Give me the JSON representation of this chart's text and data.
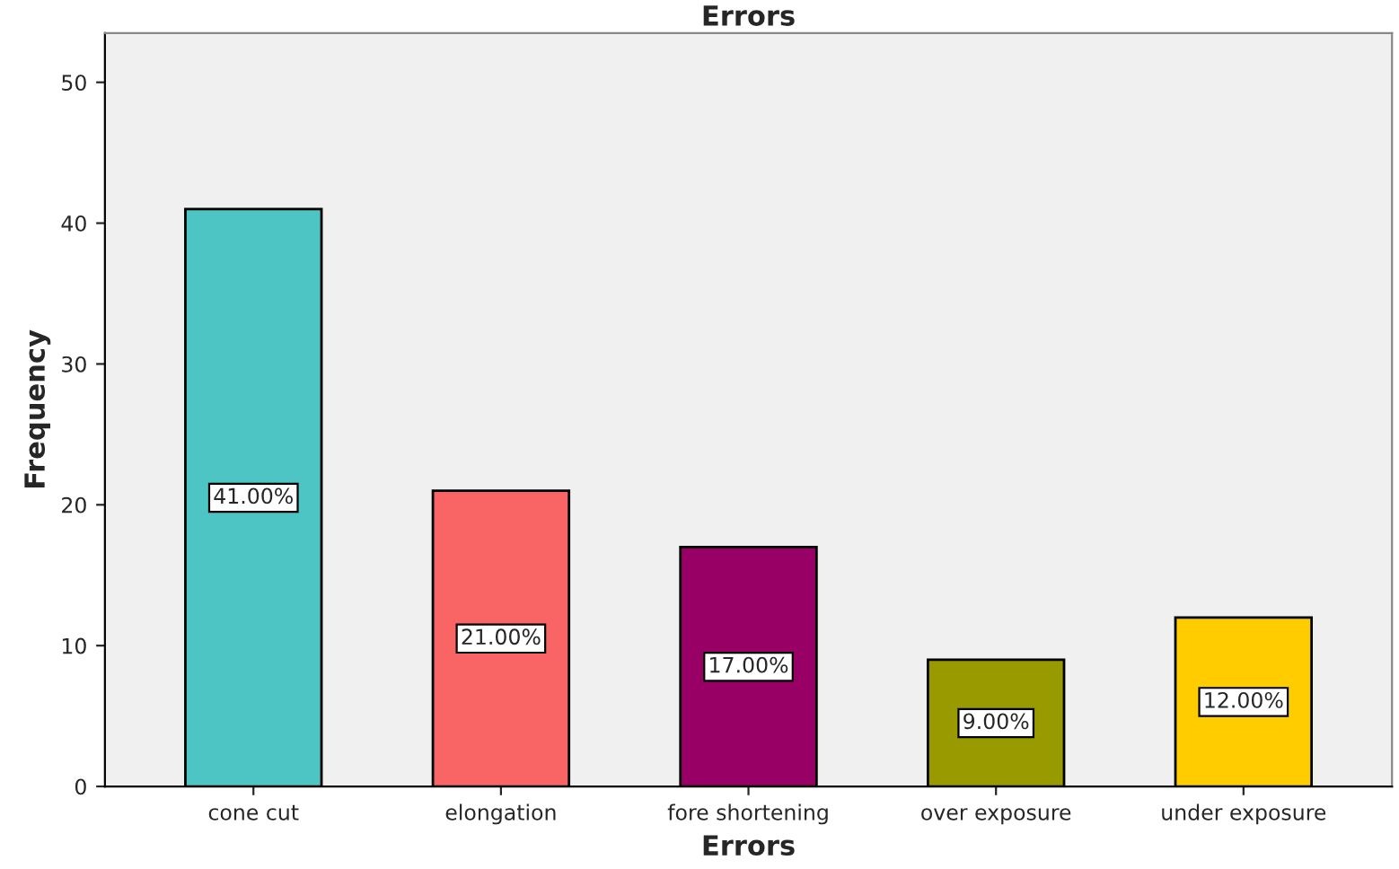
{
  "chart_data": {
    "type": "bar",
    "title": "Errors",
    "xlabel": "Errors",
    "ylabel": "Frequency",
    "categories": [
      "cone cut",
      "elongation",
      "fore shortening",
      "over exposure",
      "under exposure"
    ],
    "values": [
      41,
      21,
      17,
      9,
      12
    ],
    "colors": [
      "#4ec5c5",
      "#f96464",
      "#990066",
      "#999900",
      "#ffcc00"
    ],
    "value_labels": [
      "41.00%",
      "21.00%",
      "17.00%",
      "9.00%",
      "12.00%"
    ],
    "ylim": [
      0,
      53.5
    ],
    "yticks": [
      0,
      10,
      20,
      30,
      40,
      50
    ],
    "grid": false,
    "legend": false
  }
}
